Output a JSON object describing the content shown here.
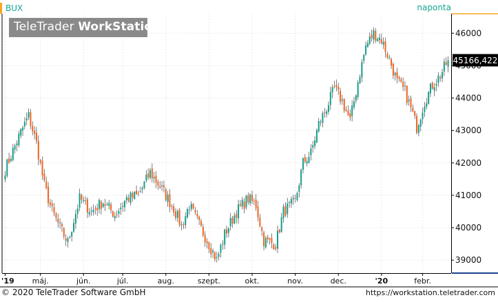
{
  "header": {
    "symbol": "BUX",
    "period": "naponta",
    "watermark_plain": "TeleTrader ",
    "watermark_bold": "WorkStation"
  },
  "footer": {
    "copyright": "© 2020 TeleTrader Software GmbH",
    "url": "https://workstation.teletrader.com"
  },
  "colors": {
    "up": "#1a9e8c",
    "down": "#f26522",
    "accent": "#f5a623",
    "grid": "#d9d9d9",
    "price_tag_bg": "#000000",
    "price_tag_text": "#ffffff"
  },
  "chart_data": {
    "type": "candlestick",
    "title": "",
    "xlabel": "",
    "ylabel": "",
    "ylim": [
      38600,
      46600
    ],
    "y_ticks": [
      39000,
      40000,
      41000,
      42000,
      43000,
      44000,
      45000,
      46000
    ],
    "y_tick_labels": [
      "39000",
      "40000",
      "41000",
      "42000",
      "43000",
      "44000",
      "45000",
      "46000"
    ],
    "x_tick_labels": [
      "'19",
      "máj.",
      "jún.",
      "júl.",
      "aug.",
      "szept.",
      "okt.",
      "nov.",
      "dec.",
      "'20",
      "febr."
    ],
    "x_tick_index": [
      0,
      18,
      40,
      60,
      82,
      104,
      126,
      148,
      170,
      192,
      213
    ],
    "last_value": 45166.422,
    "last_value_label": "45166,422",
    "grid": true,
    "key_closes": [
      [
        0,
        41800
      ],
      [
        8,
        42950
      ],
      [
        12,
        43450
      ],
      [
        16,
        42600
      ],
      [
        20,
        41300
      ],
      [
        24,
        40500
      ],
      [
        28,
        40000
      ],
      [
        32,
        39550
      ],
      [
        38,
        40900
      ],
      [
        44,
        40500
      ],
      [
        50,
        40800
      ],
      [
        56,
        40400
      ],
      [
        62,
        40900
      ],
      [
        68,
        41000
      ],
      [
        74,
        41700
      ],
      [
        80,
        41200
      ],
      [
        86,
        40600
      ],
      [
        90,
        40050
      ],
      [
        94,
        40700
      ],
      [
        98,
        40200
      ],
      [
        104,
        39500
      ],
      [
        108,
        39000
      ],
      [
        112,
        39800
      ],
      [
        118,
        40500
      ],
      [
        124,
        40900
      ],
      [
        128,
        40700
      ],
      [
        132,
        39600
      ],
      [
        138,
        39500
      ],
      [
        142,
        40500
      ],
      [
        148,
        40800
      ],
      [
        152,
        42000
      ],
      [
        156,
        42300
      ],
      [
        160,
        43200
      ],
      [
        164,
        43700
      ],
      [
        168,
        44300
      ],
      [
        172,
        43900
      ],
      [
        176,
        43300
      ],
      [
        180,
        44500
      ],
      [
        184,
        45600
      ],
      [
        188,
        46000
      ],
      [
        192,
        45800
      ],
      [
        196,
        45200
      ],
      [
        200,
        44500
      ],
      [
        204,
        44200
      ],
      [
        208,
        43500
      ],
      [
        210,
        43100
      ],
      [
        214,
        43900
      ],
      [
        218,
        44400
      ],
      [
        222,
        44700
      ],
      [
        226,
        45170
      ]
    ],
    "candle_count": 227
  }
}
